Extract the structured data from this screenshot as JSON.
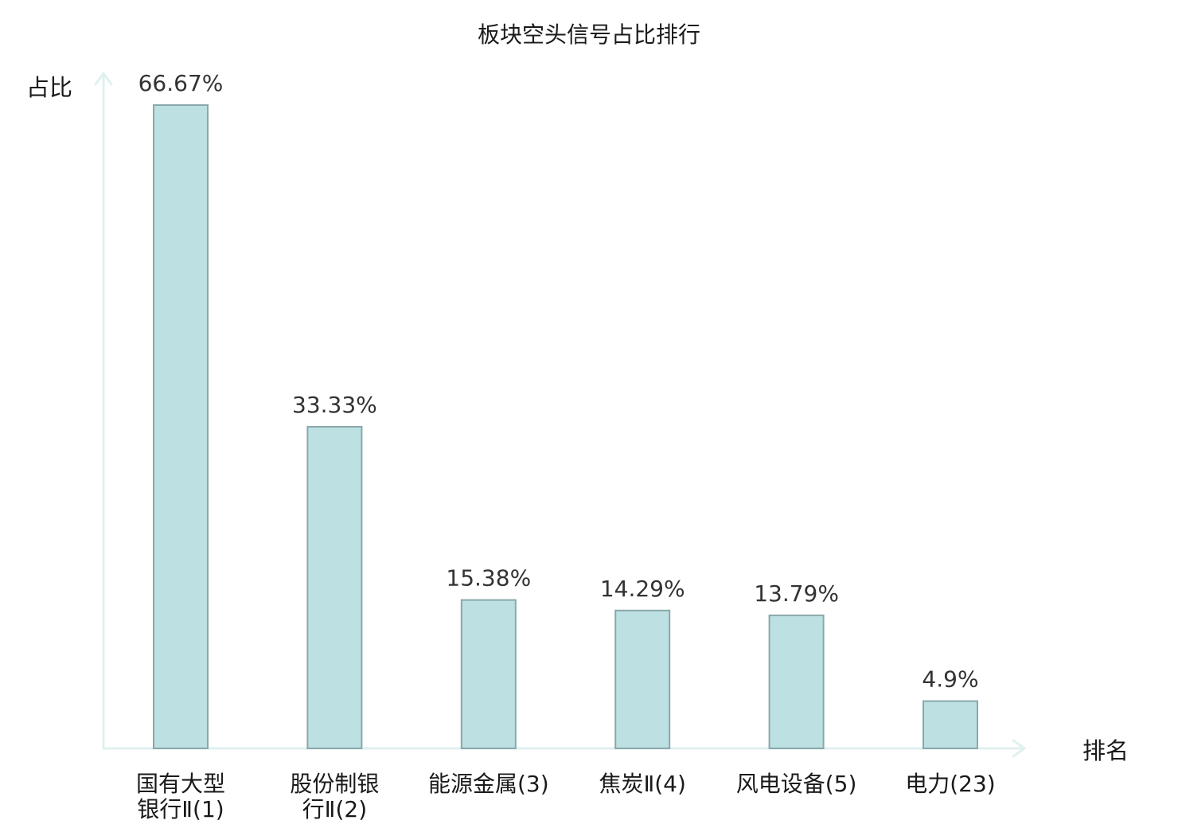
{
  "chart_data": {
    "type": "bar",
    "title": "板块空头信号占比排行",
    "ylabel": "占比",
    "xlabel": "排名",
    "ylim": [
      0,
      70
    ],
    "grid": false,
    "categories": [
      [
        "国有大型",
        "银行Ⅱ(1)"
      ],
      [
        "股份制银",
        "行Ⅱ(2)"
      ],
      [
        "能源金属(3)"
      ],
      [
        "焦炭Ⅱ(4)"
      ],
      [
        "风电设备(5)"
      ],
      [
        "电力(23)"
      ]
    ],
    "values": [
      66.67,
      33.33,
      15.38,
      14.29,
      13.79,
      4.9
    ],
    "value_labels": [
      "66.67%",
      "33.33%",
      "15.38%",
      "14.29%",
      "13.79%",
      "4.9%"
    ],
    "highlight_index": 5,
    "colors": {
      "bar_fill": "#bde0e2",
      "bar_stroke": "#8aa8aa",
      "axis": "#e0f1ef",
      "highlight_text": "#e8141a",
      "text": "#1a1a1a"
    }
  }
}
